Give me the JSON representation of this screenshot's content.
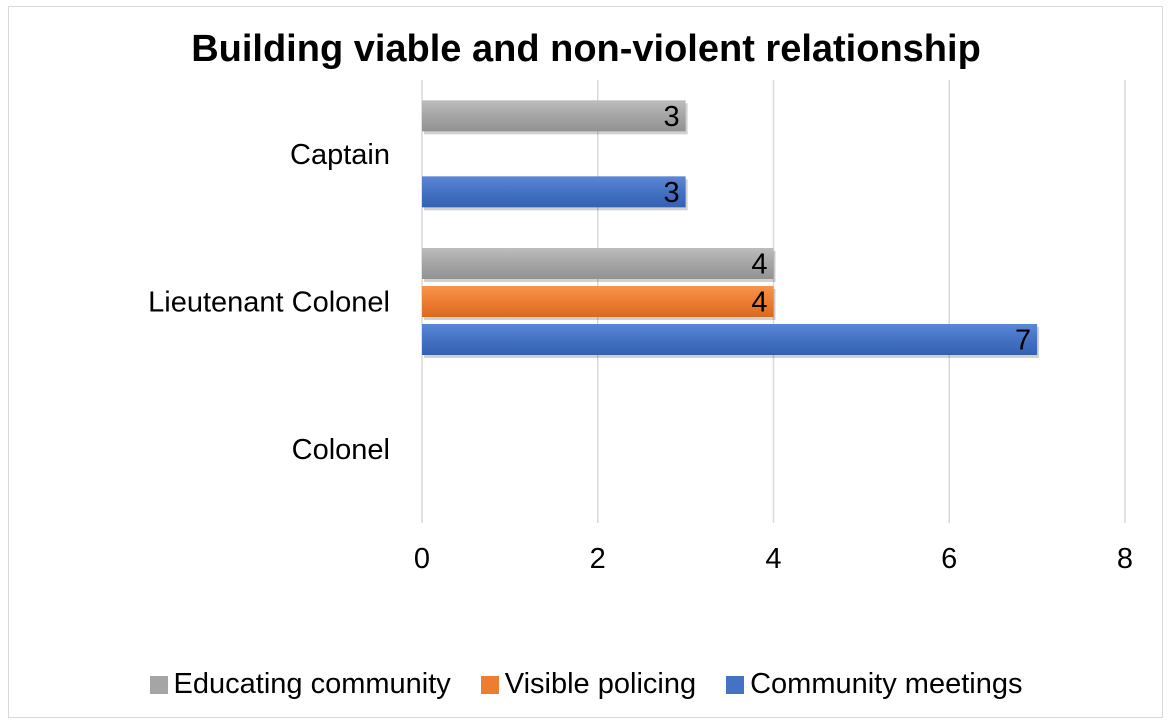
{
  "chart_data": {
    "type": "bar",
    "orientation": "horizontal",
    "title": "Building viable and non-violent relationship",
    "categories": [
      "Colonel",
      "Lieutenant Colonel",
      "Captain"
    ],
    "series": [
      {
        "name": "Community meetings",
        "color": "#4472c4",
        "values": [
          null,
          7,
          3
        ]
      },
      {
        "name": "Visible policing",
        "color": "#ed7d31",
        "values": [
          null,
          4,
          null
        ]
      },
      {
        "name": "Educating community",
        "color": "#a5a5a5",
        "values": [
          null,
          4,
          3
        ]
      }
    ],
    "x_ticks": [
      "0",
      "2",
      "4",
      "6",
      "8"
    ],
    "xlim": [
      0,
      8
    ],
    "grid": true,
    "data_labels": true,
    "legend_position": "bottom"
  }
}
